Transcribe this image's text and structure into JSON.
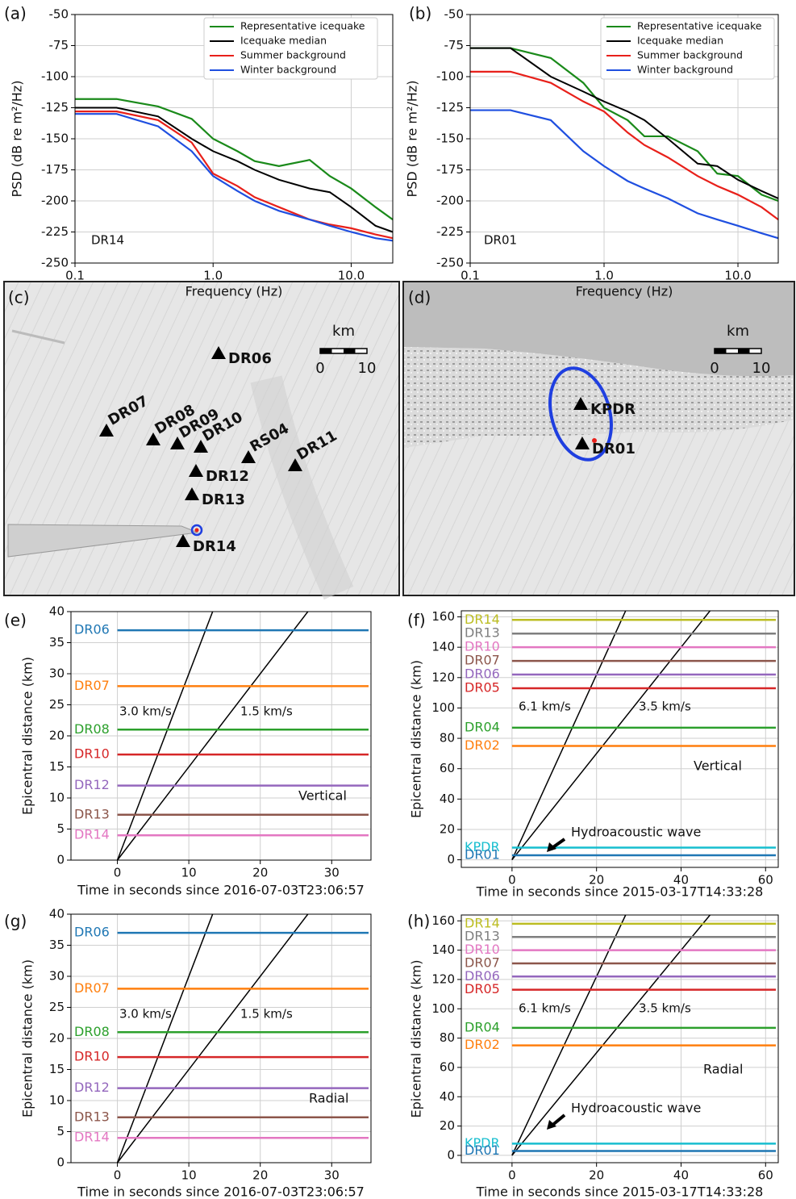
{
  "chart_data": [
    {
      "type": "line",
      "panel": "(a)",
      "xlabel": "Frequency (Hz)",
      "ylabel": "PSD (dB re m²/Hz)",
      "annotation": "DR14",
      "log_x": true,
      "grid": true,
      "xlim": [
        0.1,
        20
      ],
      "ylim": [
        -250,
        -50
      ],
      "xticks": [
        0.1,
        {
          "value": 1,
          "label": "1.0"
        },
        {
          "value": 10,
          "label": "10.0"
        }
      ],
      "yticks": [
        -50,
        -75,
        -100,
        -125,
        -150,
        -175,
        -200,
        -225,
        -250
      ],
      "x": [
        0.1,
        0.2,
        0.4,
        0.7,
        1,
        1.5,
        2,
        3,
        5,
        7,
        10,
        15,
        20
      ],
      "series": [
        {
          "name": "Representative icequake",
          "color": "#1a8a1a",
          "values": [
            -118,
            -118,
            -124,
            -134,
            -150,
            -160,
            -168,
            -172,
            -167,
            -180,
            -190,
            -205,
            -215
          ]
        },
        {
          "name": "Icequake median",
          "color": "#000000",
          "values": [
            -125,
            -125,
            -132,
            -150,
            -160,
            -168,
            -175,
            -183,
            -190,
            -193,
            -205,
            -220,
            -225
          ]
        },
        {
          "name": "Summer background",
          "color": "#e8201a",
          "values": [
            -128,
            -128,
            -135,
            -153,
            -178,
            -188,
            -197,
            -205,
            -215,
            -219,
            -222,
            -227,
            -230
          ]
        },
        {
          "name": "Winter background",
          "color": "#1f4fe0",
          "values": [
            -130,
            -130,
            -140,
            -160,
            -180,
            -192,
            -200,
            -208,
            -215,
            -220,
            -225,
            -230,
            -232
          ]
        }
      ]
    },
    {
      "type": "line",
      "panel": "(b)",
      "xlabel": "Frequency (Hz)",
      "ylabel": "PSD (dB re m²/Hz)",
      "annotation": "DR01",
      "log_x": true,
      "grid": true,
      "xlim": [
        0.1,
        20
      ],
      "ylim": [
        -250,
        -50
      ],
      "xticks": [
        0.1,
        {
          "value": 1,
          "label": "1.0"
        },
        {
          "value": 10,
          "label": "10.0"
        }
      ],
      "yticks": [
        -50,
        -75,
        -100,
        -125,
        -150,
        -175,
        -200,
        -225,
        -250
      ],
      "x": [
        0.1,
        0.2,
        0.4,
        0.7,
        1,
        1.5,
        2,
        3,
        5,
        7,
        10,
        15,
        20
      ],
      "series": [
        {
          "name": "Representative icequake",
          "color": "#1a8a1a",
          "values": [
            -77,
            -77,
            -85,
            -105,
            -125,
            -135,
            -148,
            -148,
            -160,
            -178,
            -180,
            -195,
            -200
          ]
        },
        {
          "name": "Icequake median",
          "color": "#000000",
          "values": [
            -77,
            -77,
            -100,
            -112,
            -120,
            -128,
            -135,
            -150,
            -170,
            -172,
            -183,
            -192,
            -198
          ]
        },
        {
          "name": "Summer background",
          "color": "#e8201a",
          "values": [
            -96,
            -96,
            -105,
            -120,
            -128,
            -145,
            -155,
            -165,
            -180,
            -188,
            -195,
            -205,
            -215
          ]
        },
        {
          "name": "Winter background",
          "color": "#1f4fe0",
          "values": [
            -127,
            -127,
            -135,
            -160,
            -172,
            -184,
            -190,
            -198,
            -210,
            -215,
            -220,
            -226,
            -230
          ]
        }
      ]
    },
    {
      "type": "seismic",
      "panel": "(e)",
      "xlabel": "Time in seconds since 2016-07-03T23:06:57",
      "ylabel": "Epicentral distance (km)",
      "component": "Vertical",
      "grid": true,
      "xlim": [
        -6.5,
        35.5
      ],
      "ylim": [
        0,
        40
      ],
      "xticks": [
        0,
        10,
        20,
        30
      ],
      "yticks": [
        0,
        5,
        10,
        15,
        20,
        25,
        30,
        35,
        40
      ],
      "velocities": {
        "values": [
          3.0,
          1.5
        ],
        "value_labels": [
          "3.0 km/s",
          "1.5 km/s"
        ]
      },
      "traces": [
        {
          "name": "DR06",
          "color": "#1f77b4",
          "distance": 37
        },
        {
          "name": "DR07",
          "color": "#ff7f0e",
          "distance": 28
        },
        {
          "name": "DR08",
          "color": "#2ca02c",
          "distance": 21
        },
        {
          "name": "DR10",
          "color": "#d62728",
          "distance": 17
        },
        {
          "name": "DR12",
          "color": "#9467bd",
          "distance": 12
        },
        {
          "name": "DR13",
          "color": "#8c564b",
          "distance": 7.3
        },
        {
          "name": "DR14",
          "color": "#e377c2",
          "distance": 4
        }
      ]
    },
    {
      "type": "seismic",
      "panel": "(f)",
      "xlabel": "Time in seconds since 2015-03-17T14:33:28",
      "ylabel": "Epicentral distance (km)",
      "component": "Vertical",
      "annotation": "Hydroacoustic wave",
      "grid": true,
      "xlim": [
        -12,
        63
      ],
      "ylim": [
        -5,
        164
      ],
      "xticks": [
        0,
        20,
        40,
        60
      ],
      "yticks": [
        0,
        20,
        40,
        60,
        80,
        100,
        120,
        140,
        160
      ],
      "velocities": {
        "values": [
          6.1,
          3.5
        ],
        "value_labels": [
          "6.1 km/s",
          "3.5 km/s"
        ]
      },
      "traces": [
        {
          "name": "DR14",
          "color": "#bcbd22",
          "distance": 158
        },
        {
          "name": "DR13",
          "color": "#7f7f7f",
          "distance": 149
        },
        {
          "name": "DR10",
          "color": "#e377c2",
          "distance": 140
        },
        {
          "name": "DR07",
          "color": "#8c564b",
          "distance": 131
        },
        {
          "name": "DR06",
          "color": "#9467bd",
          "distance": 122
        },
        {
          "name": "DR05",
          "color": "#d62728",
          "distance": 113
        },
        {
          "name": "DR04",
          "color": "#2ca02c",
          "distance": 87
        },
        {
          "name": "DR02",
          "color": "#ff7f0e",
          "distance": 75
        },
        {
          "name": "KPDR",
          "color": "#17becf",
          "distance": 8
        },
        {
          "name": "DR01",
          "color": "#1f77b4",
          "distance": 3
        }
      ]
    },
    {
      "type": "seismic",
      "panel": "(g)",
      "xlabel": "Time in seconds since 2016-07-03T23:06:57",
      "ylabel": "Epicentral distance (km)",
      "component": "Radial",
      "grid": true,
      "xlim": [
        -6.5,
        35.5
      ],
      "ylim": [
        0,
        40
      ],
      "xticks": [
        0,
        10,
        20,
        30
      ],
      "yticks": [
        0,
        5,
        10,
        15,
        20,
        25,
        30,
        35,
        40
      ],
      "velocities": {
        "values": [
          3.0,
          1.5
        ],
        "value_labels": [
          "3.0 km/s",
          "1.5 km/s"
        ]
      },
      "traces": [
        {
          "name": "DR06",
          "color": "#1f77b4",
          "distance": 37
        },
        {
          "name": "DR07",
          "color": "#ff7f0e",
          "distance": 28
        },
        {
          "name": "DR08",
          "color": "#2ca02c",
          "distance": 21
        },
        {
          "name": "DR10",
          "color": "#d62728",
          "distance": 17
        },
        {
          "name": "DR12",
          "color": "#9467bd",
          "distance": 12
        },
        {
          "name": "DR13",
          "color": "#8c564b",
          "distance": 7.3
        },
        {
          "name": "DR14",
          "color": "#e377c2",
          "distance": 4
        }
      ]
    },
    {
      "type": "seismic",
      "panel": "(h)",
      "xlabel": "Time in seconds since 2015-03-17T14:33:28",
      "ylabel": "Epicentral distance (km)",
      "component": "Radial",
      "annotation": "Hydroacoustic wave",
      "grid": true,
      "xlim": [
        -12,
        63
      ],
      "ylim": [
        -5,
        164
      ],
      "xticks": [
        0,
        20,
        40,
        60
      ],
      "yticks": [
        0,
        20,
        40,
        60,
        80,
        100,
        120,
        140,
        160
      ],
      "velocities": {
        "values": [
          6.1,
          3.5
        ],
        "value_labels": [
          "6.1 km/s",
          "3.5 km/s"
        ]
      },
      "traces": [
        {
          "name": "DR14",
          "color": "#bcbd22",
          "distance": 158
        },
        {
          "name": "DR13",
          "color": "#7f7f7f",
          "distance": 149
        },
        {
          "name": "DR10",
          "color": "#e377c2",
          "distance": 140
        },
        {
          "name": "DR07",
          "color": "#8c564b",
          "distance": 131
        },
        {
          "name": "DR06",
          "color": "#9467bd",
          "distance": 122
        },
        {
          "name": "DR05",
          "color": "#d62728",
          "distance": 113
        },
        {
          "name": "DR04",
          "color": "#2ca02c",
          "distance": 87
        },
        {
          "name": "DR02",
          "color": "#ff7f0e",
          "distance": 75
        },
        {
          "name": "KPDR",
          "color": "#17becf",
          "distance": 8
        },
        {
          "name": "DR01",
          "color": "#1f77b4",
          "distance": 3
        }
      ]
    }
  ],
  "maps": [
    {
      "panel": "(c)",
      "scale_unit": "km",
      "scale_ticks": [
        0,
        10
      ],
      "stations": [
        "DR06",
        "DR07",
        "DR08",
        "DR09",
        "DR10",
        "RS04",
        "DR11",
        "DR12",
        "DR13",
        "DR14"
      ]
    },
    {
      "panel": "(d)",
      "scale_unit": "km",
      "scale_ticks": [
        0,
        10
      ],
      "stations": [
        "KPDR",
        "DR01"
      ]
    }
  ]
}
